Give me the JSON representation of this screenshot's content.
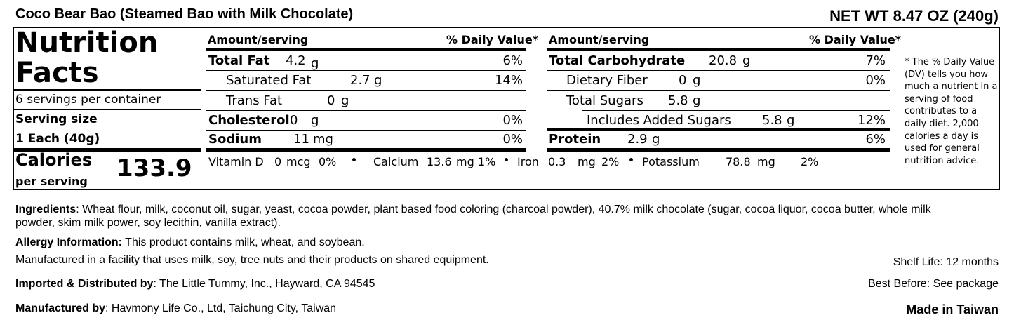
{
  "header": {
    "product_name": "Coco Bear Bao (Steamed Bao with Milk Chocolate)",
    "net_weight": "NET WT 8.47 OZ (240g)"
  },
  "panel": {
    "title_line1": "Nutrition",
    "title_line2": "Facts",
    "servings_per_container": "6 servings per container",
    "serving_size_label": "Serving size",
    "serving_size_value": "1 Each (40g)",
    "calories_label": "Calories",
    "calories_sub": "per serving",
    "calories_value": "133.9"
  },
  "left_table": {
    "header_amount": "Amount/serving",
    "header_dv": "% Daily Value*",
    "rows": [
      {
        "name": "Total Fat",
        "amount": "4.2",
        "unit": "g",
        "dv": "6%"
      },
      {
        "name": "Saturated Fat",
        "amount": "2.7",
        "unit": "g",
        "dv": "14%"
      },
      {
        "name": "Trans Fat",
        "amount": "0",
        "unit": "g",
        "dv": ""
      },
      {
        "name": "Cholesterol",
        "amount": "0",
        "unit": "g",
        "dv": "0%"
      },
      {
        "name": "Sodium",
        "amount": "11",
        "unit": "mg",
        "dv": "0%"
      }
    ]
  },
  "right_table": {
    "header_amount": "Amount/serving",
    "header_dv": "% Daily Value*",
    "rows": [
      {
        "name": "Total Carbohydrate",
        "amount": "20.8",
        "unit": "g",
        "dv": "7%"
      },
      {
        "name": "Dietary Fiber",
        "amount": "0",
        "unit": "g",
        "dv": "0%"
      },
      {
        "name": "Total Sugars",
        "amount": "5.8",
        "unit": "g",
        "dv": ""
      },
      {
        "name": "Includes Added Sugars",
        "amount": "5.8",
        "unit": "g",
        "dv": "12%"
      },
      {
        "name": "Protein",
        "amount": "2.9",
        "unit": "g",
        "dv": "6%"
      }
    ]
  },
  "vitamins": [
    {
      "name": "Vitamin D",
      "amount": "0",
      "unit": "mcg",
      "dv": "0%"
    },
    {
      "name": "Calcium",
      "amount": "13.6",
      "unit": "mg",
      "dv": "1%"
    },
    {
      "name": "Iron",
      "amount": "0.3",
      "unit": "mg",
      "dv": "2%"
    },
    {
      "name": "Potassium",
      "amount": "78.8",
      "unit": "mg",
      "dv": "2%"
    }
  ],
  "vitamin_separator": "•",
  "footnote": [
    "* The % Daily Value",
    "(DV) tells you how",
    "much a nutrient in a",
    "serving of food",
    "contributes to a",
    "daily diet. 2,000",
    "calories a day is",
    "used for general",
    "nutrition advice."
  ],
  "bottom": {
    "ingredients_label": "Ingredients",
    "ingredients_line1": ": Wheat flour, milk, coconut oil, sugar, yeast, cocoa powder, plant based food coloring (charcoal powder), 40.7% milk chocolate (sugar, cocoa liquor, cocoa butter, whole milk",
    "ingredients_line2": "powder, skim milk power, soy lecithin, vanilla extract).",
    "allergy_label": "Allergy Information:",
    "allergy_text": " This product contains milk, wheat, and soybean.",
    "facility_text": "Manufactured in a facility that uses milk, soy, tree nuts and their products on shared equipment.",
    "shelf_life": "Shelf Life: 12 months",
    "imported_label": "Imported & Distributed by",
    "imported_text": ": The Little Tummy, Inc., Hayward, CA 94545",
    "best_before": "Best Before: See package",
    "manufactured_label": "Manufactured by",
    "manufactured_text": ": Havmony Life Co., Ltd, Taichung City, Taiwan",
    "origin": "Made in Taiwan"
  }
}
